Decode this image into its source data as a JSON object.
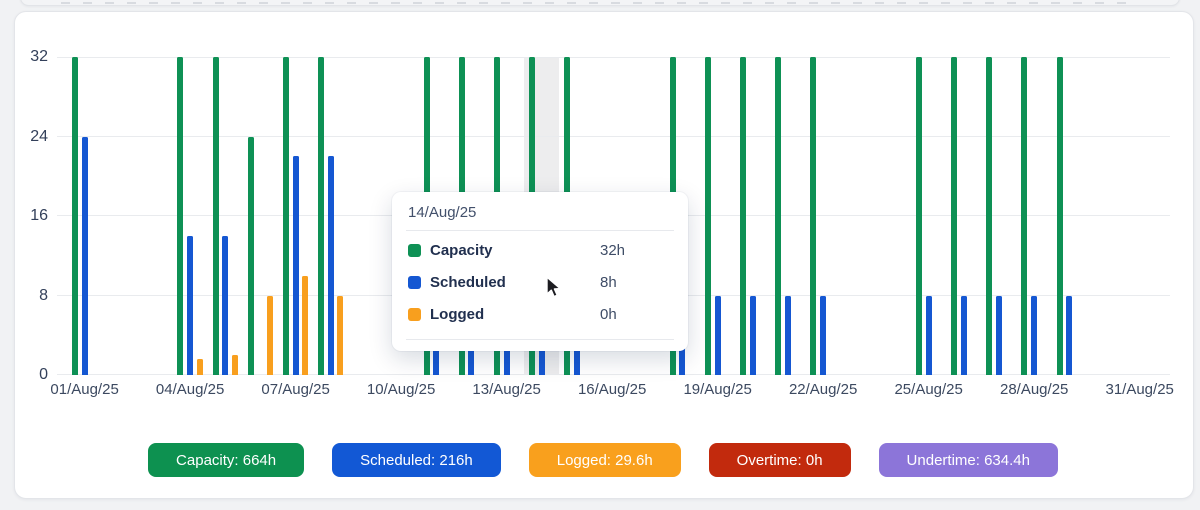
{
  "chart_data": {
    "type": "bar",
    "title": "",
    "xlabel": "",
    "ylabel": "",
    "ylim": [
      0,
      32
    ],
    "yticks": [
      0,
      8,
      16,
      24,
      32
    ],
    "xtick_step": 3,
    "grid": "horizontal",
    "legend_position": "none",
    "highlighted_category": "14/Aug/25",
    "categories": [
      "01/Aug/25",
      "02/Aug/25",
      "03/Aug/25",
      "04/Aug/25",
      "05/Aug/25",
      "06/Aug/25",
      "07/Aug/25",
      "08/Aug/25",
      "09/Aug/25",
      "10/Aug/25",
      "11/Aug/25",
      "12/Aug/25",
      "13/Aug/25",
      "14/Aug/25",
      "15/Aug/25",
      "16/Aug/25",
      "17/Aug/25",
      "18/Aug/25",
      "19/Aug/25",
      "20/Aug/25",
      "21/Aug/25",
      "22/Aug/25",
      "23/Aug/25",
      "24/Aug/25",
      "25/Aug/25",
      "26/Aug/25",
      "27/Aug/25",
      "28/Aug/25",
      "29/Aug/25",
      "30/Aug/25",
      "31/Aug/25"
    ],
    "series": [
      {
        "name": "Capacity",
        "color": "#0E9155",
        "values": [
          32,
          0,
          0,
          32,
          32,
          24,
          32,
          32,
          0,
          0,
          32,
          32,
          32,
          32,
          32,
          0,
          0,
          32,
          32,
          32,
          32,
          32,
          0,
          0,
          32,
          32,
          32,
          32,
          32,
          0,
          0
        ]
      },
      {
        "name": "Scheduled",
        "color": "#1557D2",
        "values": [
          24,
          0,
          0,
          14,
          14,
          0,
          22,
          22,
          0,
          0,
          8,
          8,
          8,
          8,
          8,
          0,
          0,
          8,
          8,
          8,
          8,
          8,
          0,
          0,
          8,
          8,
          8,
          8,
          8,
          0,
          0
        ]
      },
      {
        "name": "Logged",
        "color": "#F89F1E",
        "values": [
          0,
          0,
          0,
          1.6,
          2,
          8,
          10,
          8,
          0,
          0,
          0,
          0,
          0,
          0,
          0,
          0,
          0,
          0,
          0,
          0,
          0,
          0,
          0,
          0,
          0,
          0,
          0,
          0,
          0,
          0,
          0
        ]
      }
    ]
  },
  "tooltip": {
    "title": "14/Aug/25",
    "rows": [
      {
        "label": "Capacity",
        "value": "32h",
        "color": "#0E9155"
      },
      {
        "label": "Scheduled",
        "value": "8h",
        "color": "#1557D2"
      },
      {
        "label": "Logged",
        "value": "0h",
        "color": "#F89F1E"
      }
    ]
  },
  "summary_badges": [
    {
      "text": "Capacity: 664h",
      "color": "#0D9150"
    },
    {
      "text": "Scheduled: 216h",
      "color": "#1258D5"
    },
    {
      "text": "Logged: 29.6h",
      "color": "#F9A01D"
    },
    {
      "text": "Overtime: 0h",
      "color": "#C22A0D"
    },
    {
      "text": "Undertime: 634.4h",
      "color": "#8C75D9"
    }
  ]
}
